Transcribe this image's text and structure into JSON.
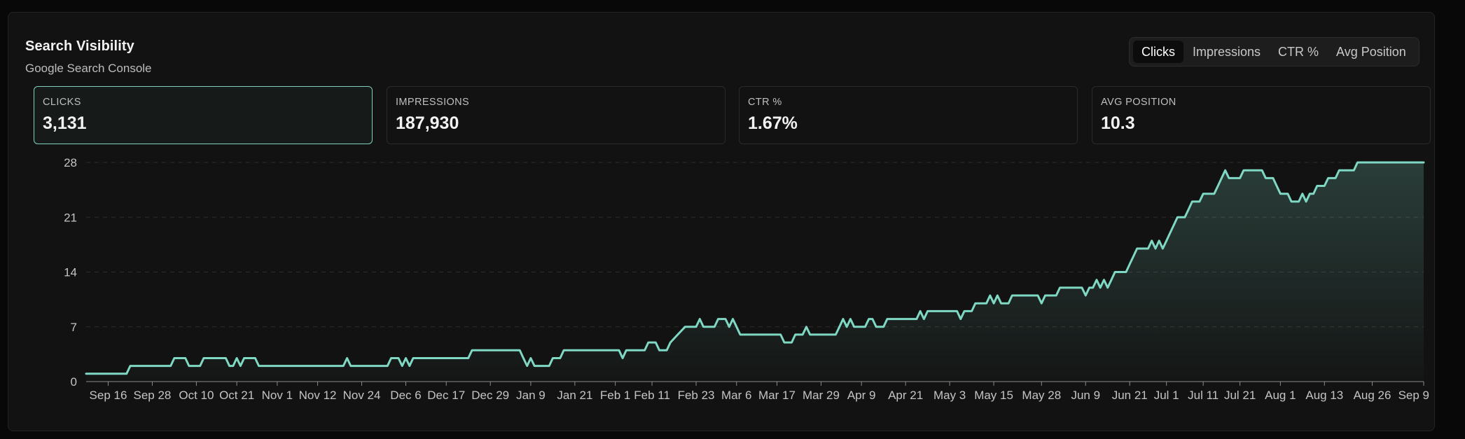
{
  "header": {
    "title": "Search Visibility",
    "subtitle": "Google Search Console"
  },
  "metric_tabs": [
    {
      "label": "Clicks",
      "active": true
    },
    {
      "label": "Impressions",
      "active": false
    },
    {
      "label": "CTR %",
      "active": false
    },
    {
      "label": "Avg Position",
      "active": false
    }
  ],
  "kpis": [
    {
      "label": "CLICKS",
      "value": "3,131",
      "active": true
    },
    {
      "label": "IMPRESSIONS",
      "value": "187,930",
      "active": false
    },
    {
      "label": "CTR %",
      "value": "1.67%",
      "active": false
    },
    {
      "label": "AVG POSITION",
      "value": "10.3",
      "active": false
    }
  ],
  "colors": {
    "line": "#7fd8c3",
    "active_border": "#7fd1bd",
    "grid": "#2e2e2e",
    "background": "#121212"
  },
  "chart_data": {
    "type": "area",
    "title": "",
    "xlabel": "",
    "ylabel": "",
    "ylim": [
      0,
      28
    ],
    "yticks": [
      0,
      7,
      14,
      21,
      28
    ],
    "grid": "horizontal-dashed",
    "x_range": [
      "Sep 10",
      "Sep 9"
    ],
    "x_tick_labels": [
      {
        "label": "Sep 16",
        "day": 6
      },
      {
        "label": "Sep 28",
        "day": 18
      },
      {
        "label": "Oct 10",
        "day": 30
      },
      {
        "label": "Oct 21",
        "day": 41
      },
      {
        "label": "Nov 1",
        "day": 52
      },
      {
        "label": "Nov 12",
        "day": 63
      },
      {
        "label": "Nov 24",
        "day": 75
      },
      {
        "label": "Dec 6",
        "day": 87
      },
      {
        "label": "Dec 17",
        "day": 98
      },
      {
        "label": "Dec 29",
        "day": 110
      },
      {
        "label": "Jan 9",
        "day": 121
      },
      {
        "label": "Jan 21",
        "day": 133
      },
      {
        "label": "Feb 1",
        "day": 144
      },
      {
        "label": "Feb 11",
        "day": 154
      },
      {
        "label": "Feb 23",
        "day": 166
      },
      {
        "label": "Mar 6",
        "day": 177
      },
      {
        "label": "Mar 17",
        "day": 188
      },
      {
        "label": "Mar 29",
        "day": 200
      },
      {
        "label": "Apr 9",
        "day": 211
      },
      {
        "label": "Apr 21",
        "day": 223
      },
      {
        "label": "May 3",
        "day": 235
      },
      {
        "label": "May 15",
        "day": 247
      },
      {
        "label": "May 28",
        "day": 260
      },
      {
        "label": "Jun 9",
        "day": 272
      },
      {
        "label": "Jun 21",
        "day": 284
      },
      {
        "label": "Jul 1",
        "day": 294
      },
      {
        "label": "Jul 11",
        "day": 304
      },
      {
        "label": "Jul 21",
        "day": 314
      },
      {
        "label": "Aug 1",
        "day": 325
      },
      {
        "label": "Aug 13",
        "day": 337
      },
      {
        "label": "Aug 26",
        "day": 350
      },
      {
        "label": "Sep 9",
        "day": 364
      }
    ],
    "series": [
      {
        "values": [
          [
            0,
            1
          ],
          [
            11,
            1
          ],
          [
            12,
            2
          ],
          [
            23,
            2
          ],
          [
            24,
            3
          ],
          [
            27,
            3
          ],
          [
            28,
            2
          ],
          [
            31,
            2
          ],
          [
            32,
            3
          ],
          [
            38,
            3
          ],
          [
            39,
            2
          ],
          [
            40,
            2
          ],
          [
            41,
            3
          ],
          [
            42,
            2
          ],
          [
            43,
            3
          ],
          [
            46,
            3
          ],
          [
            47,
            2
          ],
          [
            70,
            2
          ],
          [
            71,
            3
          ],
          [
            72,
            2
          ],
          [
            82,
            2
          ],
          [
            83,
            3
          ],
          [
            85,
            3
          ],
          [
            86,
            2
          ],
          [
            87,
            3
          ],
          [
            88,
            2
          ],
          [
            89,
            3
          ],
          [
            104,
            3
          ],
          [
            105,
            4
          ],
          [
            118,
            4
          ],
          [
            119,
            3
          ],
          [
            120,
            2
          ],
          [
            121,
            3
          ],
          [
            122,
            2
          ],
          [
            126,
            2
          ],
          [
            127,
            3
          ],
          [
            129,
            3
          ],
          [
            130,
            4
          ],
          [
            145,
            4
          ],
          [
            146,
            3
          ],
          [
            147,
            4
          ],
          [
            152,
            4
          ],
          [
            153,
            5
          ],
          [
            155,
            5
          ],
          [
            156,
            4
          ],
          [
            158,
            4
          ],
          [
            159,
            5
          ],
          [
            161,
            6
          ],
          [
            163,
            7
          ],
          [
            166,
            7
          ],
          [
            167,
            8
          ],
          [
            168,
            7
          ],
          [
            171,
            7
          ],
          [
            172,
            8
          ],
          [
            174,
            8
          ],
          [
            175,
            7
          ],
          [
            176,
            8
          ],
          [
            177,
            7
          ],
          [
            178,
            6
          ],
          [
            189,
            6
          ],
          [
            190,
            5
          ],
          [
            192,
            5
          ],
          [
            193,
            6
          ],
          [
            195,
            6
          ],
          [
            196,
            7
          ],
          [
            197,
            6
          ],
          [
            204,
            6
          ],
          [
            205,
            7
          ],
          [
            206,
            8
          ],
          [
            207,
            7
          ],
          [
            208,
            8
          ],
          [
            209,
            7
          ],
          [
            212,
            7
          ],
          [
            213,
            8
          ],
          [
            214,
            8
          ],
          [
            215,
            7
          ],
          [
            217,
            7
          ],
          [
            218,
            8
          ],
          [
            226,
            8
          ],
          [
            227,
            9
          ],
          [
            228,
            8
          ],
          [
            229,
            9
          ],
          [
            237,
            9
          ],
          [
            238,
            8
          ],
          [
            239,
            9
          ],
          [
            241,
            9
          ],
          [
            242,
            10
          ],
          [
            245,
            10
          ],
          [
            246,
            11
          ],
          [
            247,
            10
          ],
          [
            248,
            11
          ],
          [
            249,
            10
          ],
          [
            251,
            10
          ],
          [
            252,
            11
          ],
          [
            259,
            11
          ],
          [
            260,
            10
          ],
          [
            261,
            11
          ],
          [
            264,
            11
          ],
          [
            265,
            12
          ],
          [
            271,
            12
          ],
          [
            272,
            11
          ],
          [
            273,
            12
          ],
          [
            274,
            12
          ],
          [
            275,
            13
          ],
          [
            276,
            12
          ],
          [
            277,
            13
          ],
          [
            278,
            12
          ],
          [
            279,
            13
          ],
          [
            280,
            14
          ],
          [
            283,
            14
          ],
          [
            284,
            15
          ],
          [
            285,
            16
          ],
          [
            286,
            17
          ],
          [
            289,
            17
          ],
          [
            290,
            18
          ],
          [
            291,
            17
          ],
          [
            292,
            18
          ],
          [
            293,
            17
          ],
          [
            294,
            18
          ],
          [
            295,
            19
          ],
          [
            296,
            20
          ],
          [
            297,
            21
          ],
          [
            299,
            21
          ],
          [
            300,
            22
          ],
          [
            301,
            23
          ],
          [
            303,
            23
          ],
          [
            304,
            24
          ],
          [
            307,
            24
          ],
          [
            308,
            25
          ],
          [
            309,
            26
          ],
          [
            310,
            27
          ],
          [
            311,
            26
          ],
          [
            314,
            26
          ],
          [
            315,
            27
          ],
          [
            320,
            27
          ],
          [
            321,
            26
          ],
          [
            323,
            26
          ],
          [
            324,
            25
          ],
          [
            325,
            24
          ],
          [
            327,
            24
          ],
          [
            328,
            23
          ],
          [
            330,
            23
          ],
          [
            331,
            24
          ],
          [
            332,
            23
          ],
          [
            333,
            24
          ],
          [
            334,
            24
          ],
          [
            335,
            25
          ],
          [
            337,
            25
          ],
          [
            338,
            26
          ],
          [
            340,
            26
          ],
          [
            341,
            27
          ],
          [
            345,
            27
          ],
          [
            346,
            28
          ]
        ]
      }
    ]
  }
}
